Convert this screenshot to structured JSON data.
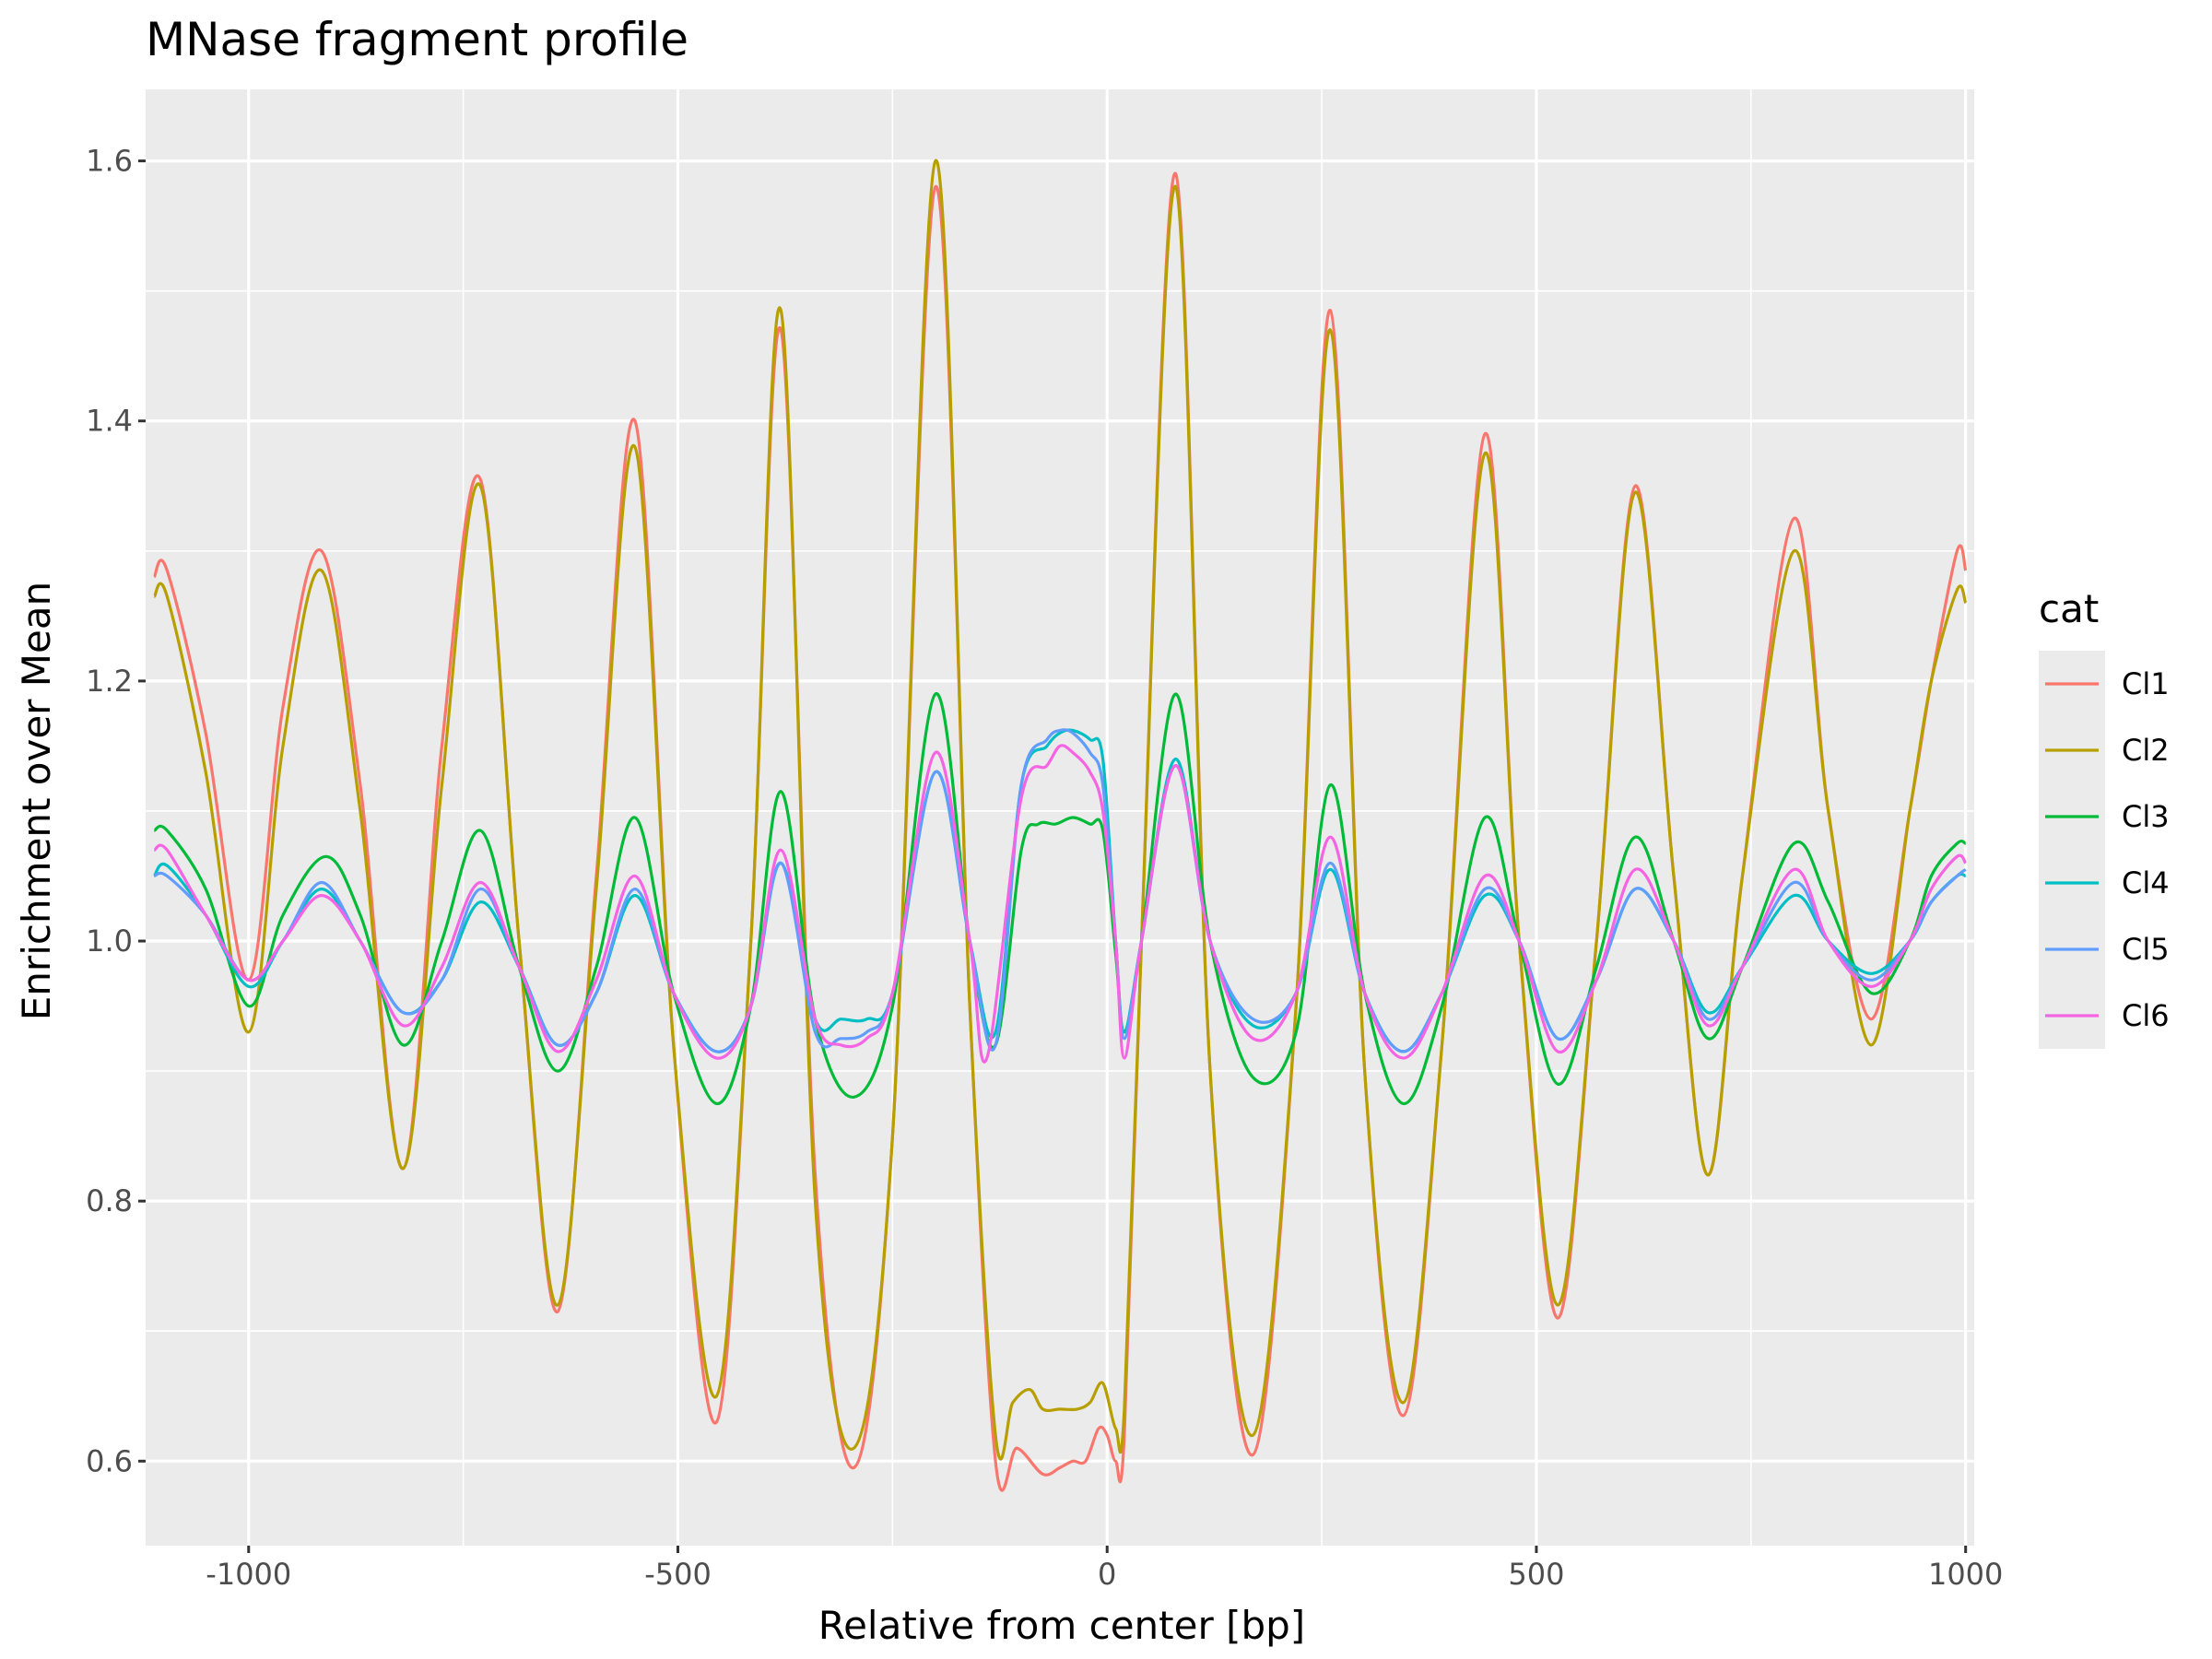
{
  "chart_data": {
    "type": "line",
    "title": "MNase fragment profile",
    "xlabel": "Relative from center [bp]",
    "ylabel": "Enrichment over Mean",
    "xlim": [
      -1120,
      1010
    ],
    "ylim": [
      0.535,
      1.655
    ],
    "x_ticks": [
      -1000,
      -500,
      0,
      500,
      1000
    ],
    "x_tick_labels": [
      "-1000",
      "-500",
      "0",
      "500",
      "1000"
    ],
    "y_ticks": [
      0.6,
      0.8,
      1.0,
      1.2,
      1.4,
      1.6
    ],
    "y_tick_labels": [
      "0.6",
      "0.8",
      "1.0",
      "1.2",
      "1.4",
      "1.6"
    ],
    "grid": true,
    "legend": {
      "title": "cat",
      "position": "right"
    },
    "series": [
      {
        "name": "Cl1",
        "color": "#F8766D",
        "x": [
          -1110,
          -1095,
          -1050,
          -1000,
          -960,
          -915,
          -870,
          -820,
          -775,
          -730,
          -685,
          -640,
          -595,
          -550,
          -505,
          -455,
          -415,
          -380,
          -340,
          -295,
          -250,
          -200,
          -160,
          -130,
          -105,
          -75,
          -55,
          -40,
          -25,
          -10,
          0,
          10,
          20,
          40,
          80,
          120,
          170,
          220,
          260,
          300,
          345,
          390,
          440,
          480,
          525,
          570,
          615,
          660,
          700,
          740,
          800,
          840,
          890,
          935,
          960,
          990,
          1000
        ],
        "y": [
          1.28,
          1.285,
          1.16,
          0.97,
          1.18,
          1.3,
          1.12,
          0.825,
          1.15,
          1.355,
          1.0,
          0.715,
          1.05,
          1.4,
          0.92,
          0.63,
          1.0,
          1.47,
          0.82,
          0.595,
          0.85,
          1.58,
          0.95,
          0.6,
          0.61,
          0.59,
          0.595,
          0.6,
          0.6,
          0.625,
          0.62,
          0.6,
          0.62,
          1.0,
          1.59,
          0.9,
          0.605,
          0.95,
          1.485,
          0.9,
          0.635,
          0.92,
          1.39,
          1.0,
          0.71,
          1.0,
          1.35,
          1.05,
          0.82,
          1.05,
          1.325,
          1.1,
          0.94,
          1.1,
          1.2,
          1.3,
          1.285
        ]
      },
      {
        "name": "Cl2",
        "color": "#B79F00",
        "x": [
          -1110,
          -1095,
          -1050,
          -1000,
          -960,
          -915,
          -870,
          -820,
          -775,
          -730,
          -685,
          -640,
          -595,
          -550,
          -505,
          -455,
          -415,
          -380,
          -340,
          -295,
          -250,
          -200,
          -160,
          -130,
          -110,
          -90,
          -75,
          -55,
          -35,
          -20,
          -5,
          10,
          20,
          40,
          80,
          120,
          170,
          220,
          260,
          300,
          345,
          390,
          440,
          480,
          525,
          570,
          615,
          660,
          700,
          740,
          800,
          840,
          890,
          935,
          960,
          990,
          1000
        ],
        "y": [
          1.265,
          1.265,
          1.13,
          0.93,
          1.15,
          1.285,
          1.1,
          0.825,
          1.12,
          1.35,
          1.0,
          0.72,
          1.04,
          1.38,
          0.92,
          0.65,
          1.0,
          1.485,
          0.8,
          0.61,
          0.85,
          1.6,
          0.95,
          0.62,
          0.645,
          0.655,
          0.64,
          0.64,
          0.64,
          0.645,
          0.66,
          0.625,
          0.64,
          1.0,
          1.58,
          0.9,
          0.62,
          0.95,
          1.47,
          0.9,
          0.645,
          0.92,
          1.375,
          1.0,
          0.72,
          1.0,
          1.345,
          1.05,
          0.82,
          1.05,
          1.3,
          1.1,
          0.92,
          1.1,
          1.2,
          1.27,
          1.26
        ]
      },
      {
        "name": "Cl3",
        "color": "#00BA38",
        "x": [
          -1110,
          -1095,
          -1050,
          -1000,
          -960,
          -910,
          -870,
          -820,
          -775,
          -730,
          -685,
          -640,
          -595,
          -550,
          -505,
          -455,
          -415,
          -380,
          -340,
          -295,
          -250,
          -200,
          -160,
          -130,
          -100,
          -80,
          -60,
          -40,
          -20,
          -5,
          10,
          20,
          40,
          80,
          120,
          170,
          220,
          260,
          300,
          345,
          390,
          440,
          480,
          525,
          570,
          615,
          660,
          700,
          740,
          800,
          840,
          890,
          935,
          960,
          990,
          1000
        ],
        "y": [
          1.085,
          1.085,
          1.04,
          0.95,
          1.02,
          1.065,
          1.02,
          0.92,
          1.0,
          1.085,
          0.98,
          0.9,
          0.98,
          1.095,
          0.96,
          0.875,
          0.95,
          1.115,
          0.94,
          0.88,
          0.95,
          1.19,
          1.0,
          0.92,
          1.07,
          1.09,
          1.09,
          1.095,
          1.09,
          1.085,
          0.99,
          0.93,
          1.0,
          1.19,
          1.0,
          0.895,
          0.93,
          1.12,
          0.96,
          0.875,
          0.95,
          1.095,
          1.0,
          0.89,
          0.98,
          1.08,
          1.0,
          0.925,
          0.98,
          1.075,
          1.03,
          0.96,
          1.0,
          1.05,
          1.075,
          1.075
        ]
      },
      {
        "name": "Cl4",
        "color": "#00BFC4",
        "x": [
          -1110,
          -1095,
          -1050,
          -1000,
          -960,
          -915,
          -870,
          -820,
          -775,
          -730,
          -685,
          -640,
          -595,
          -550,
          -505,
          -455,
          -415,
          -380,
          -340,
          -310,
          -280,
          -250,
          -200,
          -160,
          -130,
          -100,
          -70,
          -55,
          -40,
          -20,
          -5,
          10,
          20,
          40,
          80,
          120,
          170,
          220,
          260,
          300,
          345,
          390,
          440,
          480,
          525,
          570,
          615,
          660,
          700,
          740,
          800,
          840,
          890,
          935,
          960,
          990,
          1000
        ],
        "y": [
          1.05,
          1.058,
          1.02,
          0.965,
          1.0,
          1.04,
          1.0,
          0.945,
          0.97,
          1.03,
          0.98,
          0.92,
          0.96,
          1.035,
          0.96,
          0.915,
          0.95,
          1.06,
          0.94,
          0.94,
          0.94,
          0.96,
          1.13,
          1.0,
          0.93,
          1.12,
          1.15,
          1.16,
          1.162,
          1.155,
          1.14,
          1.0,
          0.93,
          1.0,
          1.14,
          1.0,
          0.935,
          0.96,
          1.055,
          0.96,
          0.915,
          0.96,
          1.035,
          1.0,
          0.925,
          0.97,
          1.04,
          1.0,
          0.945,
          0.98,
          1.035,
          1.0,
          0.975,
          1.0,
          1.03,
          1.05,
          1.05
        ]
      },
      {
        "name": "Cl5",
        "color": "#619CFF",
        "x": [
          -1110,
          -1095,
          -1050,
          -1000,
          -960,
          -915,
          -870,
          -820,
          -775,
          -730,
          -685,
          -640,
          -595,
          -550,
          -505,
          -455,
          -415,
          -380,
          -340,
          -310,
          -280,
          -250,
          -200,
          -160,
          -130,
          -100,
          -70,
          -55,
          -40,
          -20,
          -5,
          10,
          20,
          40,
          80,
          120,
          170,
          220,
          260,
          300,
          345,
          390,
          440,
          480,
          525,
          570,
          615,
          660,
          700,
          740,
          800,
          840,
          890,
          935,
          960,
          990,
          1000
        ],
        "y": [
          1.05,
          1.05,
          1.02,
          0.97,
          1.0,
          1.045,
          1.0,
          0.945,
          0.97,
          1.04,
          0.98,
          0.92,
          0.96,
          1.04,
          0.96,
          0.915,
          0.95,
          1.06,
          0.93,
          0.925,
          0.93,
          0.96,
          1.13,
          1.0,
          0.92,
          1.12,
          1.155,
          1.162,
          1.16,
          1.145,
          1.12,
          1.0,
          0.925,
          1.0,
          1.135,
          1.0,
          0.94,
          0.96,
          1.06,
          0.96,
          0.915,
          0.96,
          1.04,
          1.0,
          0.925,
          0.97,
          1.04,
          1.0,
          0.94,
          0.98,
          1.045,
          1.0,
          0.97,
          1.0,
          1.03,
          1.05,
          1.055
        ]
      },
      {
        "name": "Cl6",
        "color": "#F564E3",
        "x": [
          -1110,
          -1095,
          -1050,
          -1000,
          -960,
          -915,
          -870,
          -820,
          -775,
          -730,
          -685,
          -640,
          -595,
          -550,
          -505,
          -455,
          -415,
          -380,
          -340,
          -310,
          -280,
          -250,
          -200,
          -160,
          -140,
          -100,
          -70,
          -55,
          -40,
          -20,
          -5,
          10,
          20,
          40,
          80,
          120,
          170,
          220,
          260,
          300,
          345,
          390,
          440,
          480,
          525,
          570,
          615,
          660,
          700,
          740,
          800,
          840,
          890,
          935,
          960,
          990,
          1000
        ],
        "y": [
          1.07,
          1.07,
          1.02,
          0.97,
          1.0,
          1.035,
          1.0,
          0.935,
          0.98,
          1.045,
          0.98,
          0.915,
          0.97,
          1.05,
          0.96,
          0.91,
          0.95,
          1.07,
          0.94,
          0.92,
          0.925,
          0.96,
          1.145,
          1.0,
          0.91,
          1.11,
          1.135,
          1.15,
          1.145,
          1.13,
          1.1,
          1.0,
          0.91,
          1.0,
          1.135,
          1.0,
          0.925,
          0.96,
          1.08,
          0.96,
          0.91,
          0.96,
          1.05,
          1.0,
          0.915,
          0.97,
          1.055,
          1.0,
          0.935,
          0.98,
          1.055,
          1.0,
          0.965,
          1.0,
          1.04,
          1.065,
          1.06
        ]
      }
    ]
  }
}
